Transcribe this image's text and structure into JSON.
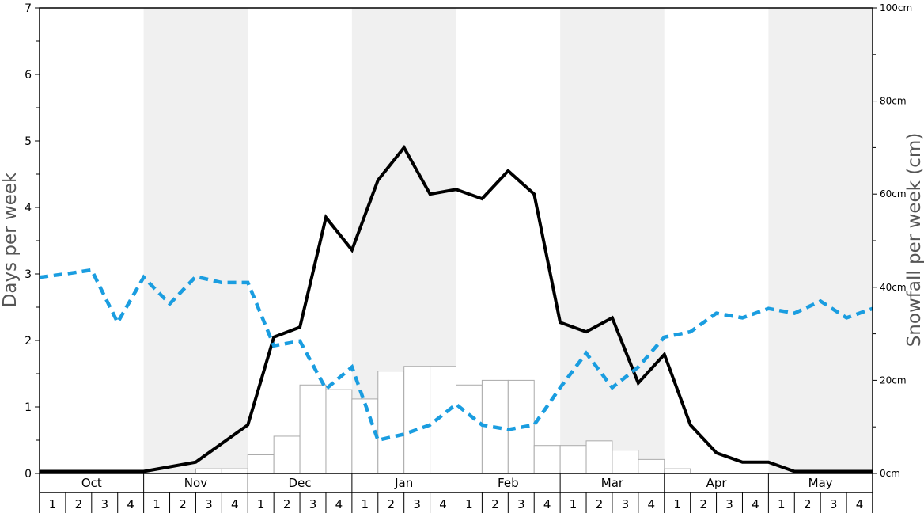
{
  "chart_data": {
    "type": "bar",
    "y_left_label": "Days per week",
    "y_right_label": "Snowfall per week (cm)",
    "y_left_range": [
      0,
      7
    ],
    "y_left_ticks": [
      "0",
      "1",
      "2",
      "3",
      "4",
      "5",
      "6",
      "7"
    ],
    "y_right_range": [
      0,
      100
    ],
    "y_right_ticks": [
      "0cm",
      "20cm",
      "40cm",
      "60cm",
      "80cm",
      "100cm"
    ],
    "months": [
      "Oct",
      "Nov",
      "Dec",
      "Jan",
      "Feb",
      "Mar",
      "Apr",
      "May"
    ],
    "weeks": [
      "1",
      "2",
      "3",
      "4"
    ],
    "shaded_months": [
      "Nov",
      "Jan",
      "Mar",
      "May"
    ],
    "series": [
      {
        "kind": "bar",
        "axis": "right",
        "color": "#aaaaaa",
        "values": [
          0,
          0,
          0,
          0,
          0,
          0,
          1,
          1,
          4,
          8,
          19,
          18,
          16,
          22,
          23,
          23,
          19,
          20,
          20,
          6,
          6,
          7,
          5,
          3,
          1,
          0,
          0,
          0,
          0,
          0,
          0,
          0
        ]
      },
      {
        "kind": "line",
        "axis": "left",
        "color": "#000000",
        "style": "solid",
        "values": [
          0.03,
          0.03,
          0.03,
          0.03,
          0.03,
          0.1,
          0.17,
          0.45,
          0.73,
          2.05,
          2.2,
          3.85,
          3.36,
          4.41,
          4.9,
          4.2,
          4.27,
          4.13,
          4.55,
          4.2,
          2.27,
          2.13,
          2.34,
          1.36,
          1.79,
          0.73,
          0.31,
          0.17,
          0.17,
          0.03,
          0.03,
          0.03,
          0.03
        ]
      },
      {
        "kind": "line",
        "axis": "left",
        "color": "#1a9de0",
        "style": "dashed",
        "values": [
          2.95,
          3.0,
          3.06,
          2.27,
          2.95,
          2.55,
          2.96,
          2.87,
          2.87,
          1.92,
          1.99,
          1.27,
          1.6,
          0.5,
          0.59,
          0.73,
          1.04,
          0.73,
          0.66,
          0.73,
          1.29,
          1.81,
          1.29,
          1.6,
          2.05,
          2.13,
          2.41,
          2.34,
          2.48,
          2.41,
          2.59,
          2.34,
          2.48
        ]
      }
    ]
  }
}
